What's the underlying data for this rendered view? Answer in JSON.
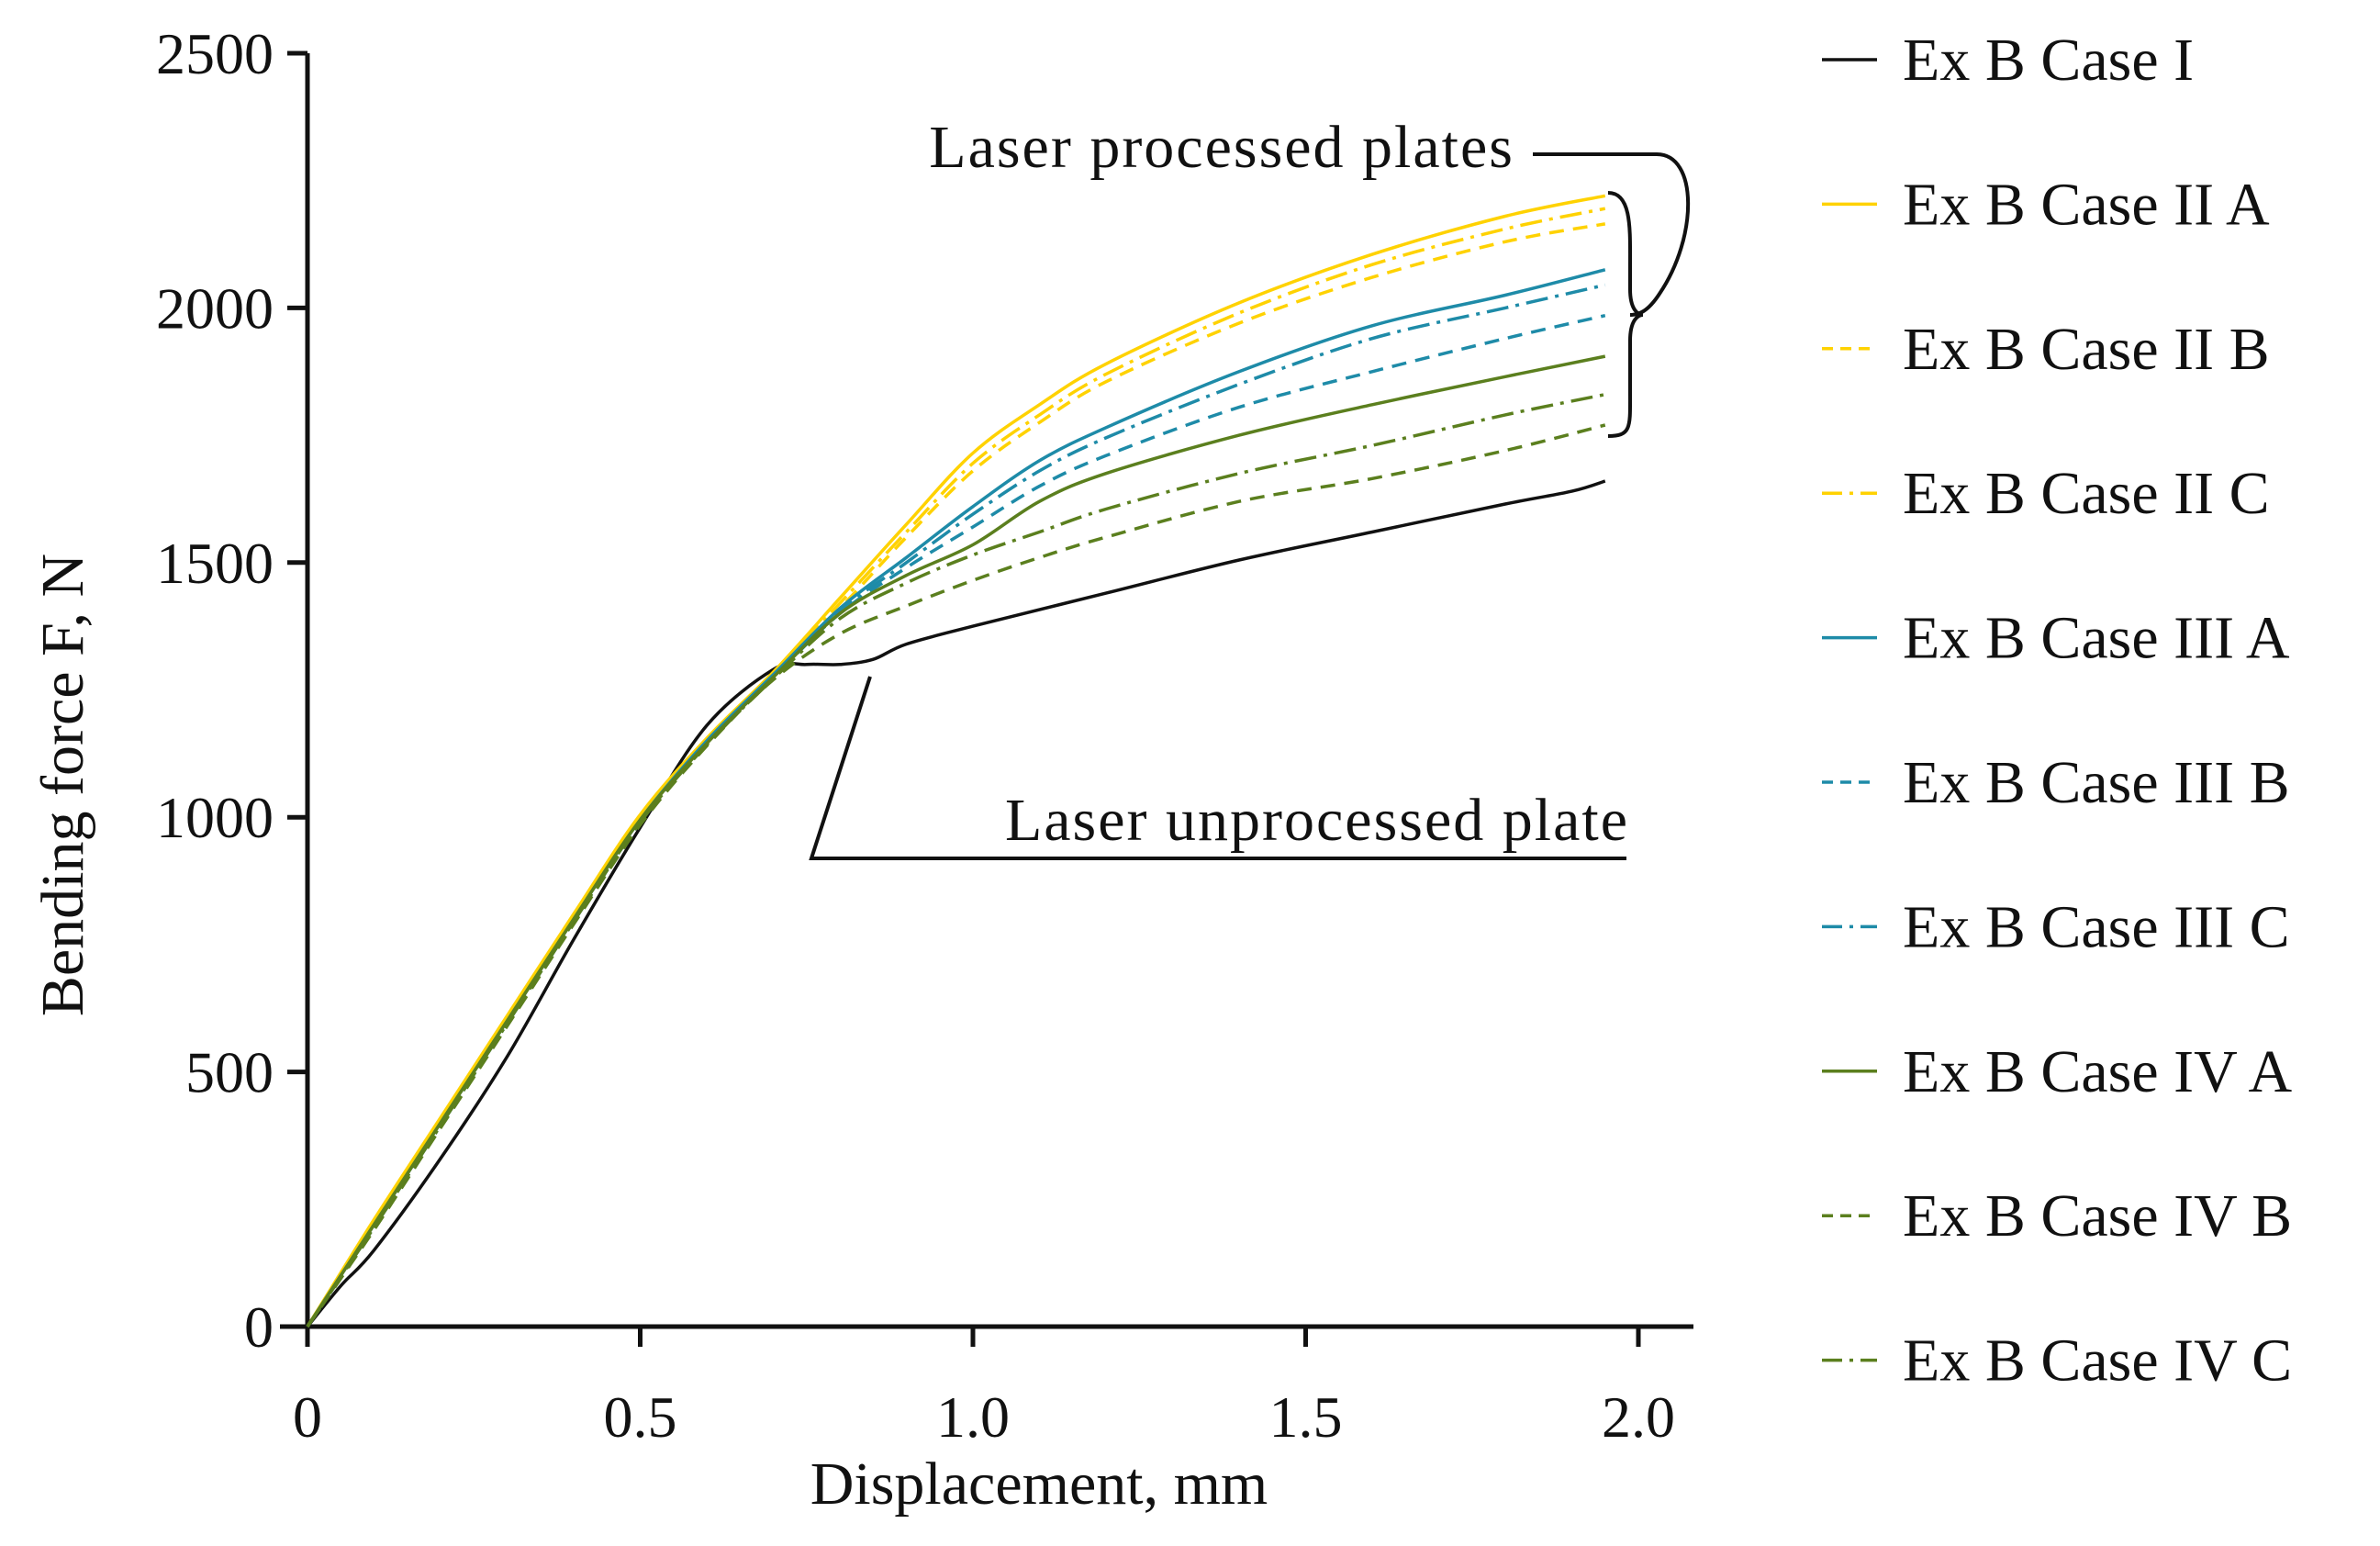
{
  "chart_data": {
    "type": "line",
    "title": "",
    "xlabel": "Displacement, mm",
    "ylabel": "Bending force F, N",
    "xlim": [
      0,
      2.0
    ],
    "ylim": [
      0,
      2500
    ],
    "xticks": [
      0,
      0.5,
      1.0,
      1.5,
      2.0
    ],
    "xtick_labels": [
      "0",
      "0.5",
      "1.0",
      "1.5",
      "2.0"
    ],
    "yticks": [
      0,
      500,
      1000,
      1500,
      2000,
      2500
    ],
    "ytick_labels": [
      "0",
      "500",
      "1000",
      "1500",
      "2000",
      "2500"
    ],
    "grid": false,
    "legend_position": "right",
    "annotations": {
      "processed": "Laser processed plates",
      "unprocessed": "Laser unprocessed plate"
    },
    "series": [
      {
        "name": "Ex B Case I",
        "color": "#111111",
        "dash": "solid",
        "points": [
          [
            0,
            0
          ],
          [
            0.05,
            80
          ],
          [
            0.1,
            150
          ],
          [
            0.2,
            330
          ],
          [
            0.3,
            530
          ],
          [
            0.4,
            760
          ],
          [
            0.5,
            980
          ],
          [
            0.6,
            1180
          ],
          [
            0.7,
            1290
          ],
          [
            0.75,
            1300
          ],
          [
            0.8,
            1300
          ],
          [
            0.85,
            1310
          ],
          [
            0.9,
            1340
          ],
          [
            1.0,
            1375
          ],
          [
            1.2,
            1440
          ],
          [
            1.4,
            1505
          ],
          [
            1.6,
            1560
          ],
          [
            1.8,
            1615
          ],
          [
            1.9,
            1640
          ],
          [
            1.95,
            1660
          ]
        ]
      },
      {
        "name": "Ex B Case II A",
        "color": "#FFD200",
        "dash": "solid",
        "points": [
          [
            0,
            0
          ],
          [
            0.1,
            210
          ],
          [
            0.2,
            410
          ],
          [
            0.3,
            610
          ],
          [
            0.4,
            810
          ],
          [
            0.5,
            1005
          ],
          [
            0.6,
            1155
          ],
          [
            0.7,
            1285
          ],
          [
            0.8,
            1430
          ],
          [
            0.9,
            1575
          ],
          [
            1.0,
            1715
          ],
          [
            1.1,
            1810
          ],
          [
            1.2,
            1890
          ],
          [
            1.4,
            2010
          ],
          [
            1.6,
            2105
          ],
          [
            1.8,
            2180
          ],
          [
            1.95,
            2220
          ]
        ]
      },
      {
        "name": "Ex B Case II B",
        "color": "#FFD200",
        "dash": "dash",
        "points": [
          [
            0,
            0
          ],
          [
            0.1,
            205
          ],
          [
            0.2,
            405
          ],
          [
            0.3,
            605
          ],
          [
            0.4,
            805
          ],
          [
            0.5,
            1000
          ],
          [
            0.6,
            1150
          ],
          [
            0.7,
            1280
          ],
          [
            0.8,
            1410
          ],
          [
            0.9,
            1550
          ],
          [
            1.0,
            1680
          ],
          [
            1.1,
            1775
          ],
          [
            1.2,
            1855
          ],
          [
            1.4,
            1970
          ],
          [
            1.6,
            2060
          ],
          [
            1.8,
            2130
          ],
          [
            1.95,
            2165
          ]
        ]
      },
      {
        "name": "Ex B Case II C",
        "color": "#FFD200",
        "dash": "dashdot",
        "points": [
          [
            0,
            0
          ],
          [
            0.1,
            205
          ],
          [
            0.2,
            405
          ],
          [
            0.3,
            605
          ],
          [
            0.4,
            805
          ],
          [
            0.5,
            1000
          ],
          [
            0.6,
            1150
          ],
          [
            0.7,
            1280
          ],
          [
            0.8,
            1420
          ],
          [
            0.9,
            1560
          ],
          [
            1.0,
            1695
          ],
          [
            1.1,
            1790
          ],
          [
            1.2,
            1870
          ],
          [
            1.4,
            1990
          ],
          [
            1.6,
            2085
          ],
          [
            1.8,
            2155
          ],
          [
            1.95,
            2195
          ]
        ]
      },
      {
        "name": "Ex B Case III A",
        "color": "#1E8BA8",
        "dash": "solid",
        "points": [
          [
            0,
            0
          ],
          [
            0.1,
            200
          ],
          [
            0.2,
            400
          ],
          [
            0.3,
            600
          ],
          [
            0.4,
            800
          ],
          [
            0.5,
            995
          ],
          [
            0.6,
            1150
          ],
          [
            0.7,
            1280
          ],
          [
            0.8,
            1410
          ],
          [
            0.9,
            1510
          ],
          [
            1.0,
            1610
          ],
          [
            1.1,
            1700
          ],
          [
            1.2,
            1765
          ],
          [
            1.4,
            1875
          ],
          [
            1.6,
            1965
          ],
          [
            1.8,
            2025
          ],
          [
            1.95,
            2075
          ]
        ]
      },
      {
        "name": "Ex B Case III B",
        "color": "#1E8BA8",
        "dash": "dash",
        "points": [
          [
            0,
            0
          ],
          [
            0.1,
            195
          ],
          [
            0.2,
            395
          ],
          [
            0.3,
            595
          ],
          [
            0.4,
            795
          ],
          [
            0.5,
            990
          ],
          [
            0.6,
            1145
          ],
          [
            0.7,
            1275
          ],
          [
            0.8,
            1400
          ],
          [
            0.9,
            1490
          ],
          [
            1.0,
            1570
          ],
          [
            1.1,
            1650
          ],
          [
            1.2,
            1710
          ],
          [
            1.4,
            1805
          ],
          [
            1.6,
            1875
          ],
          [
            1.8,
            1940
          ],
          [
            1.95,
            1985
          ]
        ]
      },
      {
        "name": "Ex B Case III C",
        "color": "#1E8BA8",
        "dash": "dashdot",
        "points": [
          [
            0,
            0
          ],
          [
            0.1,
            195
          ],
          [
            0.2,
            395
          ],
          [
            0.3,
            595
          ],
          [
            0.4,
            795
          ],
          [
            0.5,
            990
          ],
          [
            0.6,
            1145
          ],
          [
            0.7,
            1275
          ],
          [
            0.8,
            1405
          ],
          [
            0.9,
            1500
          ],
          [
            1.0,
            1595
          ],
          [
            1.1,
            1680
          ],
          [
            1.2,
            1745
          ],
          [
            1.4,
            1850
          ],
          [
            1.6,
            1940
          ],
          [
            1.8,
            2000
          ],
          [
            1.95,
            2045
          ]
        ]
      },
      {
        "name": "Ex B Case IV A",
        "color": "#5B7F1E",
        "dash": "solid",
        "points": [
          [
            0,
            0
          ],
          [
            0.1,
            200
          ],
          [
            0.2,
            400
          ],
          [
            0.3,
            600
          ],
          [
            0.4,
            800
          ],
          [
            0.5,
            995
          ],
          [
            0.6,
            1145
          ],
          [
            0.7,
            1275
          ],
          [
            0.8,
            1400
          ],
          [
            0.9,
            1475
          ],
          [
            1.0,
            1535
          ],
          [
            1.1,
            1620
          ],
          [
            1.2,
            1675
          ],
          [
            1.4,
            1750
          ],
          [
            1.6,
            1810
          ],
          [
            1.8,
            1865
          ],
          [
            1.95,
            1905
          ]
        ]
      },
      {
        "name": "Ex B Case IV B",
        "color": "#5B7F1E",
        "dash": "dash",
        "points": [
          [
            0,
            0
          ],
          [
            0.1,
            190
          ],
          [
            0.2,
            390
          ],
          [
            0.3,
            590
          ],
          [
            0.4,
            790
          ],
          [
            0.5,
            985
          ],
          [
            0.6,
            1140
          ],
          [
            0.7,
            1270
          ],
          [
            0.8,
            1360
          ],
          [
            0.9,
            1415
          ],
          [
            1.0,
            1465
          ],
          [
            1.1,
            1510
          ],
          [
            1.2,
            1550
          ],
          [
            1.4,
            1620
          ],
          [
            1.6,
            1665
          ],
          [
            1.8,
            1720
          ],
          [
            1.95,
            1770
          ]
        ]
      },
      {
        "name": "Ex B Case IV C",
        "color": "#5B7F1E",
        "dash": "dashdot",
        "points": [
          [
            0,
            0
          ],
          [
            0.1,
            195
          ],
          [
            0.2,
            395
          ],
          [
            0.3,
            595
          ],
          [
            0.4,
            795
          ],
          [
            0.5,
            990
          ],
          [
            0.6,
            1142
          ],
          [
            0.7,
            1272
          ],
          [
            0.8,
            1390
          ],
          [
            0.9,
            1460
          ],
          [
            1.0,
            1515
          ],
          [
            1.1,
            1560
          ],
          [
            1.2,
            1605
          ],
          [
            1.4,
            1675
          ],
          [
            1.6,
            1730
          ],
          [
            1.8,
            1790
          ],
          [
            1.95,
            1830
          ]
        ]
      }
    ]
  }
}
